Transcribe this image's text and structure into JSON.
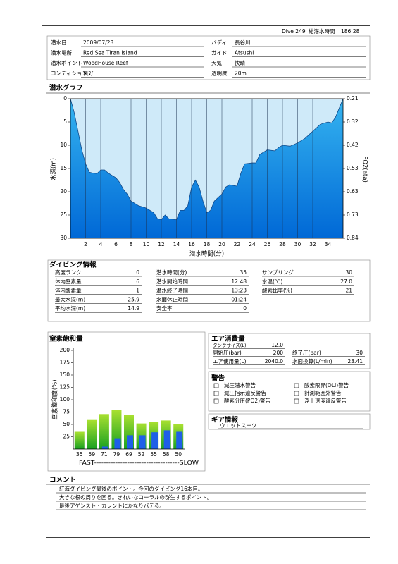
{
  "header": {
    "dive": "Dive 249",
    "total_label": "総潜水時間",
    "total": "186:28"
  },
  "info": [
    {
      "label": "潜水日",
      "value": "2009/07/23"
    },
    {
      "label": "バディ",
      "value": "長谷川"
    },
    {
      "label": "潜水場所",
      "value": "Red Sea  Tiran  Island"
    },
    {
      "label": "ガイド",
      "value": "Atsushi"
    },
    {
      "label": "潜水ポイント",
      "value": "WoodHouse  Reef"
    },
    {
      "label": "天気",
      "value": "快晴"
    },
    {
      "label": "コンディション",
      "value": "良好"
    },
    {
      "label": "透明度",
      "value": "20m"
    }
  ],
  "graph_title": "潜水グラフ",
  "dive_info": {
    "title": "ダイビング情報",
    "items": [
      {
        "label": "高度ランク",
        "value": "0"
      },
      {
        "label": "体内窒素量",
        "value": "6"
      },
      {
        "label": "体内酸素量",
        "value": "1"
      },
      {
        "label": "最大水深(m)",
        "value": "25.9"
      },
      {
        "label": "平均水深(m)",
        "value": "14.9"
      },
      {
        "label": "潜水時間(分)",
        "value": "35"
      },
      {
        "label": "潜水開始時間",
        "value": "12:48"
      },
      {
        "label": "潜水終了時間",
        "value": "13:23"
      },
      {
        "label": "水面休止時間",
        "value": "01:24"
      },
      {
        "label": "安全率",
        "value": "0"
      },
      {
        "label": "サンプリング",
        "value": "30"
      },
      {
        "label": "水温(℃)",
        "value": "27.0"
      },
      {
        "label": "酸素比率(%)",
        "value": "21"
      }
    ]
  },
  "nitrogen_title": "窒素飽和量",
  "air": {
    "title": "エア消費量",
    "items": [
      {
        "label": "タンクサイズ(L)",
        "value": "12.0"
      },
      {
        "label": "開始圧(bar)",
        "value": "200"
      },
      {
        "label": "終了圧(bar)",
        "value": "30"
      },
      {
        "label": "エア使用量(L)",
        "value": "2040.0"
      },
      {
        "label": "水面換算(L/min)",
        "value": "23.41"
      }
    ]
  },
  "warnings": {
    "title": "警告",
    "items": [
      "減圧潜水警告",
      "減圧指示違反警告",
      "酸素分圧(PO2)警告",
      "酸素限界(OLI)警告",
      "計測範囲外警告",
      "浮上速度違反警告"
    ]
  },
  "gear": {
    "title": "ギア情報",
    "items": [
      "ウエットスーツ"
    ]
  },
  "comment": {
    "title": "コメント",
    "lines": [
      "紅海ダイビング最後のポイント。今回のダイビング16本目。",
      "大きな根の周りを回る。きれいなコーラルの群生するポイント。",
      "最後アゲンスト・カレントにかなりバテる。"
    ]
  },
  "chart_data": [
    {
      "type": "area",
      "x_label": "潜水時間(分)",
      "y_label": "水深(m)",
      "y2_label": "PO2(ata)",
      "x": [
        0,
        0.5,
        1,
        1.5,
        2,
        2.5,
        3,
        3.5,
        4,
        4.5,
        5,
        6,
        6.5,
        7,
        7.5,
        8,
        9,
        10,
        11,
        11.5,
        12,
        12.5,
        13,
        14,
        14.5,
        15,
        15.5,
        16,
        16.5,
        17,
        17.5,
        18,
        18.5,
        19,
        20,
        20.5,
        21,
        22,
        22.5,
        23,
        24,
        24.5,
        25,
        26,
        27,
        27.5,
        28,
        29,
        30,
        31,
        32,
        33,
        34,
        34.5,
        35,
        35.5,
        36
      ],
      "series": [
        {
          "color": "#1e8fe0",
          "values": [
            0,
            3,
            7,
            11,
            14,
            15.8,
            16,
            16.1,
            15.3,
            15.3,
            16,
            17,
            18,
            19.5,
            20.5,
            22,
            23,
            23.5,
            24.5,
            25.8,
            26,
            25,
            25.8,
            26,
            24,
            24,
            23,
            19,
            17.5,
            19,
            22,
            24.5,
            24,
            22,
            20.5,
            19,
            18.5,
            18.8,
            16,
            14,
            13.8,
            13.8,
            12,
            11,
            11.2,
            10.5,
            10,
            10.2,
            9.5,
            8.5,
            7,
            5.5,
            5,
            5.2,
            4,
            2,
            0
          ]
        }
      ],
      "xlim": [
        0,
        36
      ],
      "xticks": [
        2,
        4,
        6,
        8,
        10,
        12,
        14,
        16,
        18,
        20,
        22,
        24,
        26,
        28,
        30,
        32,
        34
      ],
      "ylim": [
        0,
        30
      ],
      "yticks": [
        0,
        5,
        10,
        15,
        20,
        25,
        30
      ],
      "y_inverted": true,
      "y2lim": [
        0.21,
        0.84
      ],
      "y2ticks": [
        0.21,
        {
          "value": 0.315,
          "label": "0.32"
        },
        0.42,
        {
          "value": 0.525,
          "label": "0.53"
        },
        0.63,
        {
          "value": 0.735,
          "label": "0.73"
        },
        0.84
      ],
      "grid": "x"
    },
    {
      "type": "bar",
      "y_label": "窒素飽和度(%)",
      "x_label": "FAST------------------------------------SLOW",
      "categories": [
        "35",
        "59",
        "71",
        "79",
        "69",
        "52",
        "55",
        "58",
        "50"
      ],
      "series": [
        {
          "color": "#44b82a",
          "values": [
            35,
            59,
            71,
            79,
            69,
            52,
            55,
            58,
            50
          ]
        },
        {
          "color": "#1f5fe8",
          "values": [
            0,
            0,
            5,
            22,
            28,
            28,
            34,
            38,
            35
          ]
        }
      ],
      "ylim": [
        0,
        200
      ],
      "yticks": [
        25,
        50,
        75,
        100,
        125,
        150,
        175,
        200
      ]
    }
  ]
}
